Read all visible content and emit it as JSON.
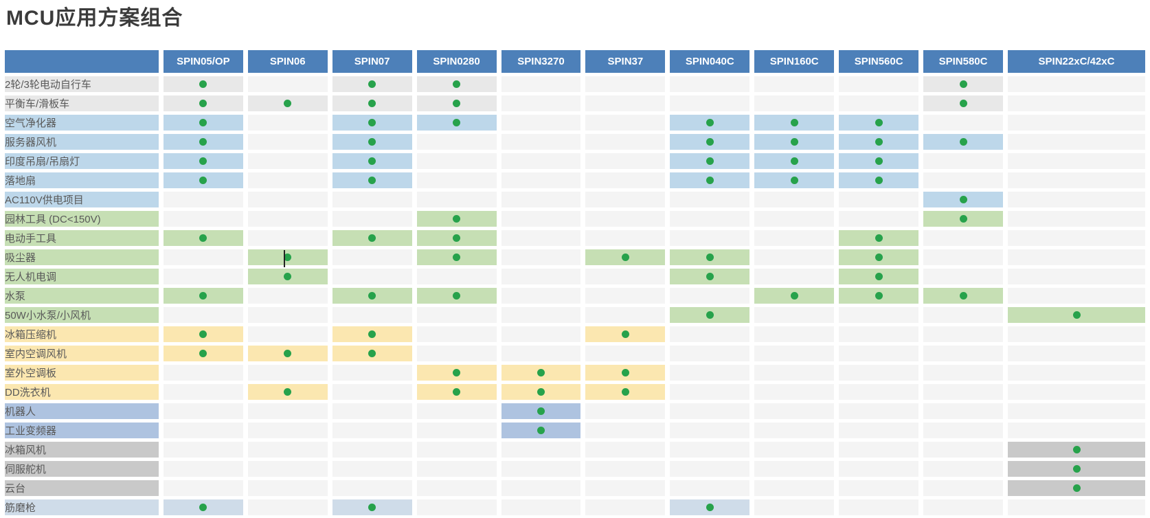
{
  "title": "MCU应用方案组合",
  "colors": {
    "header_bg": "#4d80b9",
    "header_text": "#ffffff",
    "dot": "#27a24b",
    "empty_cell": "#f4f4f4",
    "title_text": "#3b3b3b",
    "label_text": "#595959",
    "groups": {
      "gray": "#e8e8e8",
      "blue": "#bdd7ea",
      "green": "#c6dfb4",
      "yellow": "#fbe7b0",
      "periwinkle": "#aec3e0",
      "darkgray": "#c9c9c9",
      "lightblue": "#cfdce9"
    }
  },
  "table": {
    "columns": [
      "SPIN05/OP",
      "SPIN06",
      "SPIN07",
      "SPIN0280",
      "SPIN3270",
      "SPIN37",
      "SPIN040C",
      "SPIN160C",
      "SPIN560C",
      "SPIN580C",
      "SPIN22xC/42xC"
    ],
    "rows": [
      {
        "label": "2轮/3轮电动自行车",
        "group": "gray",
        "dots": [
          0,
          2,
          3,
          9
        ]
      },
      {
        "label": "平衡车/滑板车",
        "group": "gray",
        "dots": [
          0,
          1,
          2,
          3,
          9
        ]
      },
      {
        "label": "空气净化器",
        "group": "blue",
        "dots": [
          0,
          2,
          3,
          6,
          7,
          8
        ]
      },
      {
        "label": "服务器风机",
        "group": "blue",
        "dots": [
          0,
          2,
          6,
          7,
          8,
          9
        ]
      },
      {
        "label": "印度吊扇/吊扇灯",
        "group": "blue",
        "dots": [
          0,
          2,
          6,
          7,
          8
        ]
      },
      {
        "label": "落地扇",
        "group": "blue",
        "dots": [
          0,
          2,
          6,
          7,
          8
        ]
      },
      {
        "label": "AC110V供电项目",
        "group": "blue",
        "dots": [
          9
        ]
      },
      {
        "label": "园林工具 (DC<150V)",
        "group": "green",
        "dots": [
          3,
          9
        ]
      },
      {
        "label": "电动手工具",
        "group": "green",
        "dots": [
          0,
          2,
          3,
          8
        ]
      },
      {
        "label": "吸尘器",
        "group": "green",
        "dots": [
          1,
          3,
          5,
          6,
          8
        ]
      },
      {
        "label": "无人机电调",
        "group": "green",
        "dots": [
          1,
          6,
          8
        ]
      },
      {
        "label": "水泵",
        "group": "green",
        "dots": [
          0,
          2,
          3,
          7,
          8,
          9
        ]
      },
      {
        "label": "50W小水泵/小风机",
        "group": "green",
        "dots": [
          6,
          10
        ]
      },
      {
        "label": "冰箱压缩机",
        "group": "yellow",
        "dots": [
          0,
          2,
          5
        ]
      },
      {
        "label": "室内空调风机",
        "group": "yellow",
        "dots": [
          0,
          1,
          2
        ]
      },
      {
        "label": "室外空调板",
        "group": "yellow",
        "dots": [
          3,
          4,
          5
        ]
      },
      {
        "label": "DD洗衣机",
        "group": "yellow",
        "dots": [
          1,
          3,
          4,
          5
        ]
      },
      {
        "label": "机器人",
        "group": "periwinkle",
        "dots": [
          4
        ]
      },
      {
        "label": "工业变频器",
        "group": "periwinkle",
        "dots": [
          4
        ]
      },
      {
        "label": "冰箱风机",
        "group": "darkgray",
        "dots": [
          10
        ]
      },
      {
        "label": "伺服舵机",
        "group": "darkgray",
        "dots": [
          10
        ]
      },
      {
        "label": "云台",
        "group": "darkgray",
        "dots": [
          10
        ]
      },
      {
        "label": "筋磨枪",
        "group": "lightblue",
        "dots": [
          0,
          2,
          6
        ]
      }
    ],
    "layout": {
      "label_col_width": 224,
      "data_col_width": 116,
      "last_col_width": 200
    }
  }
}
